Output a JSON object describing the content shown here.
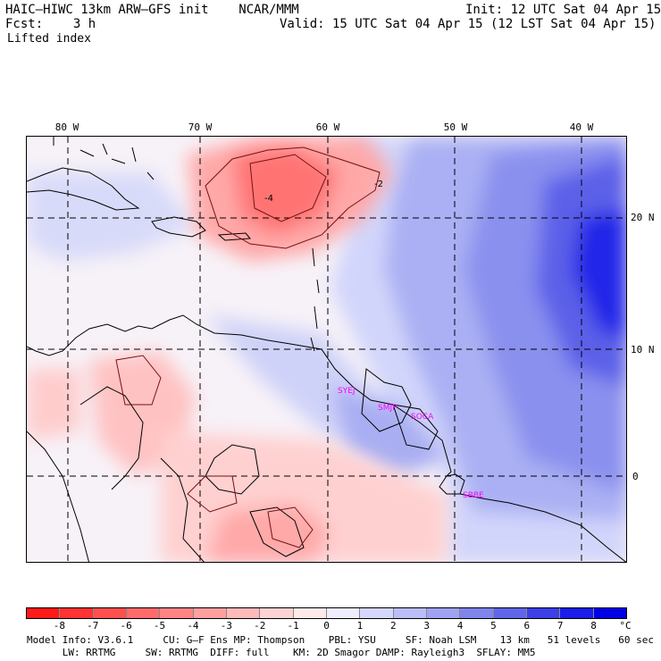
{
  "header": {
    "title": "HAIC–HIWC 13km ARW–GFS init    NCAR/MMM",
    "init": "Init: 12 UTC Sat 04 Apr 15",
    "fcst": "Fcst:    3 h",
    "valid": "Valid: 15 UTC Sat 04 Apr 15 (12 LST Sat 04 Apr 15)",
    "field": "Lifted index"
  },
  "map": {
    "lon_labels": [
      "80 W",
      "70 W",
      "60 W",
      "50 W",
      "40 W"
    ],
    "lat_labels": [
      "20 N",
      "10 N",
      "0"
    ],
    "contour_labels": [
      "-4",
      "-2"
    ],
    "stations": [
      "SYEJ",
      "SMJP",
      "SOCA",
      "SBBE"
    ]
  },
  "colorbar": {
    "ticks": [
      "-8",
      "-7",
      "-6",
      "-5",
      "-4",
      "-3",
      "-2",
      "-1",
      "0",
      "1",
      "2",
      "3",
      "4",
      "5",
      "6",
      "7",
      "8"
    ],
    "unit": "°C",
    "colors": [
      "#ff1a1a",
      "#ff3333",
      "#ff5050",
      "#ff6b6b",
      "#ff8585",
      "#ffa0a0",
      "#ffbaba",
      "#ffd3d3",
      "#ffeaea",
      "#eeeeff",
      "#d5d7ff",
      "#bbbdf8",
      "#9fa3f2",
      "#8085ec",
      "#6066e8",
      "#3c40e6",
      "#1a1ee8",
      "#0000e6"
    ]
  },
  "footer": {
    "line1": "Model Info: V3.6.1     CU: G–F Ens MP: Thompson    PBL: YSU     SF: Noah LSM    13 km   51 levels   60 sec",
    "line2": "      LW: RRTMG     SW: RRTMG  DIFF: full    KM: 2D Smagor DAMP: Rayleigh3  SFLAY: MM5"
  }
}
